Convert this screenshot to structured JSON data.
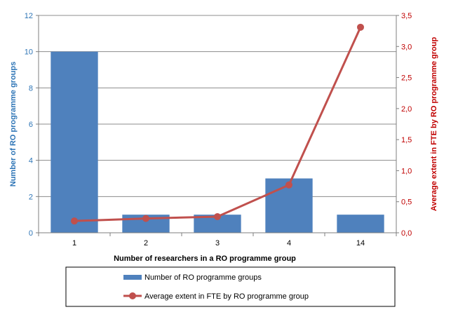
{
  "chart_data": {
    "type": "bar",
    "categories": [
      "1",
      "2",
      "3",
      "4",
      "14"
    ],
    "series": [
      {
        "name": "Number of RO programme groups",
        "type": "bar",
        "axis": "left",
        "color": "#4F81BD",
        "values": [
          10,
          1,
          1,
          3,
          1
        ]
      },
      {
        "name": "Average extent in FTE by RO programme group",
        "type": "line",
        "axis": "right",
        "color": "#C0504D",
        "values": [
          0.19,
          0.23,
          0.26,
          0.77,
          3.31
        ]
      }
    ],
    "xlabel": "Number of researchers in a RO programme group",
    "ylabel_left": "Number of RO programme groups",
    "ylabel_right": "Average extent in FTE by RO programme group",
    "ylim_left": [
      0,
      12
    ],
    "ylim_right": [
      0,
      3.5
    ],
    "yticks_left": [
      "0",
      "2",
      "4",
      "6",
      "8",
      "10",
      "12"
    ],
    "yticks_right": [
      "0,0",
      "0,5",
      "1,0",
      "1,5",
      "2,0",
      "2,5",
      "3,0",
      "3,5"
    ],
    "left_axis_color": "#2E75B6",
    "right_axis_color": "#C00000",
    "grid": true,
    "legend_position": "bottom"
  }
}
